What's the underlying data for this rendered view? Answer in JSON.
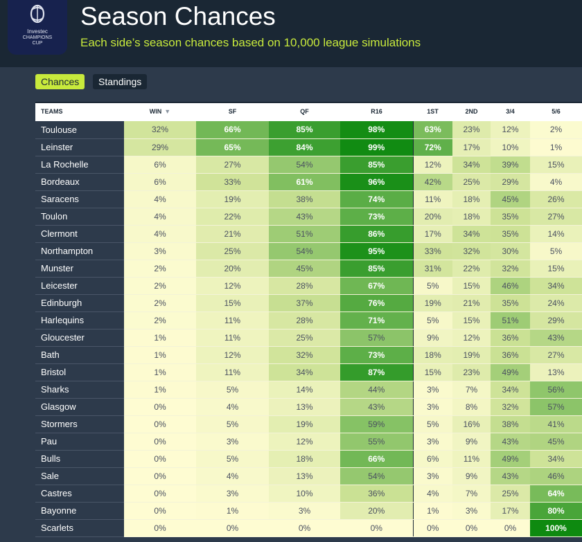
{
  "header": {
    "logo_lines": [
      "Investec",
      "CHAMPIONS",
      "CUP"
    ],
    "title": "Season Chances",
    "subtitle": "Each side’s season chances based on 10,000 league simulations"
  },
  "tabs": [
    {
      "label": "Chances",
      "active": true
    },
    {
      "label": "Standings",
      "active": false
    }
  ],
  "table": {
    "columns": [
      "TEAMS",
      "WIN",
      "SF",
      "QF",
      "R16",
      "1ST",
      "2ND",
      "3/4",
      "5/6"
    ],
    "sorted_column": "WIN",
    "rows": [
      {
        "team": "Toulouse",
        "values": [
          32,
          66,
          85,
          98,
          63,
          23,
          12,
          2
        ]
      },
      {
        "team": "Leinster",
        "values": [
          29,
          65,
          84,
          99,
          72,
          17,
          10,
          1
        ]
      },
      {
        "team": "La Rochelle",
        "values": [
          6,
          27,
          54,
          85,
          12,
          34,
          39,
          15
        ]
      },
      {
        "team": "Bordeaux",
        "values": [
          6,
          33,
          61,
          96,
          42,
          25,
          29,
          4
        ]
      },
      {
        "team": "Saracens",
        "values": [
          4,
          19,
          38,
          74,
          11,
          18,
          45,
          26
        ]
      },
      {
        "team": "Toulon",
        "values": [
          4,
          22,
          43,
          73,
          20,
          18,
          35,
          27
        ]
      },
      {
        "team": "Clermont",
        "values": [
          4,
          21,
          51,
          86,
          17,
          34,
          35,
          14
        ]
      },
      {
        "team": "Northampton",
        "values": [
          3,
          25,
          54,
          95,
          33,
          32,
          30,
          5
        ]
      },
      {
        "team": "Munster",
        "values": [
          2,
          20,
          45,
          85,
          31,
          22,
          32,
          15
        ]
      },
      {
        "team": "Leicester",
        "values": [
          2,
          12,
          28,
          67,
          5,
          15,
          46,
          34
        ]
      },
      {
        "team": "Edinburgh",
        "values": [
          2,
          15,
          37,
          76,
          19,
          21,
          35,
          24
        ]
      },
      {
        "team": "Harlequins",
        "values": [
          2,
          11,
          28,
          71,
          5,
          15,
          51,
          29
        ]
      },
      {
        "team": "Gloucester",
        "values": [
          1,
          11,
          25,
          57,
          9,
          12,
          36,
          43
        ]
      },
      {
        "team": "Bath",
        "values": [
          1,
          12,
          32,
          73,
          18,
          19,
          36,
          27
        ]
      },
      {
        "team": "Bristol",
        "values": [
          1,
          11,
          34,
          87,
          15,
          23,
          49,
          13
        ]
      },
      {
        "team": "Sharks",
        "values": [
          1,
          5,
          14,
          44,
          3,
          7,
          34,
          56
        ]
      },
      {
        "team": "Glasgow",
        "values": [
          0,
          4,
          13,
          43,
          3,
          8,
          32,
          57
        ]
      },
      {
        "team": "Stormers",
        "values": [
          0,
          5,
          19,
          59,
          5,
          16,
          38,
          41
        ]
      },
      {
        "team": "Pau",
        "values": [
          0,
          3,
          12,
          55,
          3,
          9,
          43,
          45
        ]
      },
      {
        "team": "Bulls",
        "values": [
          0,
          5,
          18,
          66,
          6,
          11,
          49,
          34
        ]
      },
      {
        "team": "Sale",
        "values": [
          0,
          4,
          13,
          54,
          3,
          9,
          43,
          46
        ]
      },
      {
        "team": "Castres",
        "values": [
          0,
          3,
          10,
          36,
          4,
          7,
          25,
          64
        ]
      },
      {
        "team": "Bayonne",
        "values": [
          0,
          1,
          3,
          20,
          1,
          3,
          17,
          80
        ]
      },
      {
        "team": "Scarlets",
        "values": [
          0,
          0,
          0,
          0,
          0,
          0,
          0,
          100
        ]
      }
    ]
  },
  "colors": {
    "header_bg": "#1a2734",
    "page_bg": "#2d3a4b",
    "accent": "#c8ea3c",
    "heat_low": "#fefcd2",
    "heat_high": "#0e8a10"
  }
}
